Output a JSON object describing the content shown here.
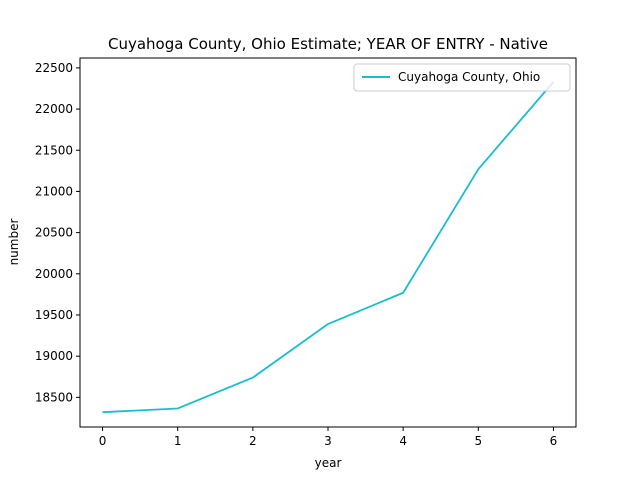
{
  "chart_data": {
    "type": "line",
    "title": "Cuyahoga County, Ohio Estimate; YEAR OF ENTRY - Native",
    "xlabel": "year",
    "ylabel": "number",
    "x": [
      0,
      1,
      2,
      3,
      4,
      5,
      6
    ],
    "series": [
      {
        "name": "Cuyahoga County, Ohio",
        "color": "#17becf",
        "values": [
          18320,
          18365,
          18740,
          19390,
          19770,
          21270,
          22330
        ]
      }
    ],
    "xlim": [
      -0.3,
      6.3
    ],
    "ylim": [
      18140,
      22620
    ],
    "xticks": [
      0,
      1,
      2,
      3,
      4,
      5,
      6
    ],
    "yticks": [
      18500,
      19000,
      19500,
      20000,
      20500,
      21000,
      21500,
      22000,
      22500
    ],
    "grid": false,
    "legend_position": "top-right"
  }
}
